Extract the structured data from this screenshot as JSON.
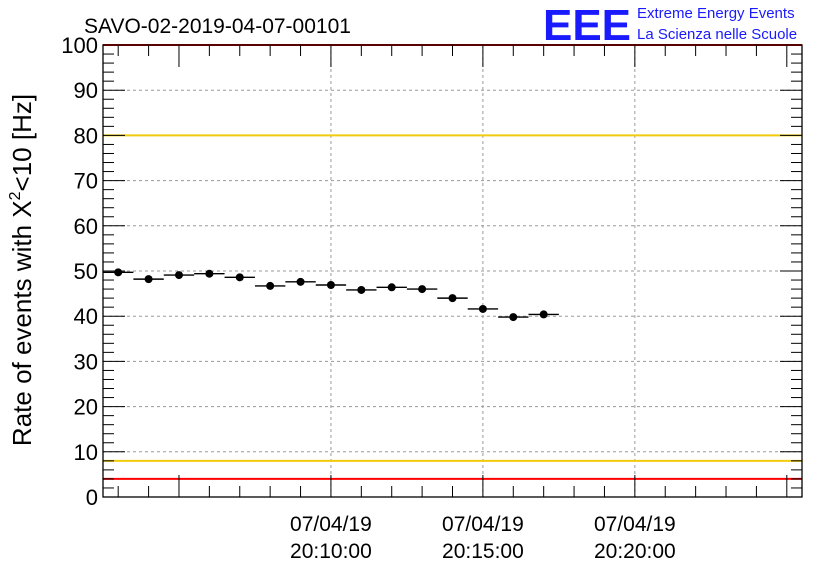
{
  "header": {
    "run_title": "SAVO-02-2019-04-07-00101",
    "logo_text": "EEE",
    "logo_line1": "Extreme Energy Events",
    "logo_line2": "La Scienza nelle Scuole"
  },
  "chart_data": {
    "type": "scatter",
    "title": "SAVO-02-2019-04-07-00101",
    "xlabel": "",
    "ylabel_main": "Rate of events with X",
    "ylabel_sup": "2",
    "ylabel_tail": "<10 [Hz]",
    "xlim_min": [
      -2.5,
      20.5
    ],
    "ylim": [
      0,
      100
    ],
    "y_ticks": [
      0,
      10,
      20,
      30,
      40,
      50,
      60,
      70,
      80,
      90,
      100
    ],
    "x_ticks": [
      {
        "minute": 5,
        "date": "07/04/19",
        "time": "20:10:00"
      },
      {
        "minute": 10,
        "date": "07/04/19",
        "time": "20:15:00"
      },
      {
        "minute": 15,
        "date": "07/04/19",
        "time": "20:20:00"
      }
    ],
    "grid": true,
    "points": [
      {
        "x": -2.0,
        "y": 49.7
      },
      {
        "x": -1.0,
        "y": 48.2
      },
      {
        "x": 0.0,
        "y": 49.1
      },
      {
        "x": 1.0,
        "y": 49.4
      },
      {
        "x": 2.0,
        "y": 48.6
      },
      {
        "x": 3.0,
        "y": 46.7
      },
      {
        "x": 4.0,
        "y": 47.6
      },
      {
        "x": 5.0,
        "y": 46.9
      },
      {
        "x": 6.0,
        "y": 45.8
      },
      {
        "x": 7.0,
        "y": 46.4
      },
      {
        "x": 8.0,
        "y": 46.0
      },
      {
        "x": 9.0,
        "y": 44.0
      },
      {
        "x": 10.0,
        "y": 41.6
      },
      {
        "x": 11.0,
        "y": 39.8
      },
      {
        "x": 12.0,
        "y": 40.4
      }
    ],
    "point_half_width": 0.5,
    "reference_lines": [
      {
        "y": 100,
        "color": "#ff0000"
      },
      {
        "y": 80,
        "color": "#f2cc0c"
      },
      {
        "y": 8,
        "color": "#f2cc0c"
      },
      {
        "y": 4,
        "color": "#ff0000"
      }
    ]
  }
}
